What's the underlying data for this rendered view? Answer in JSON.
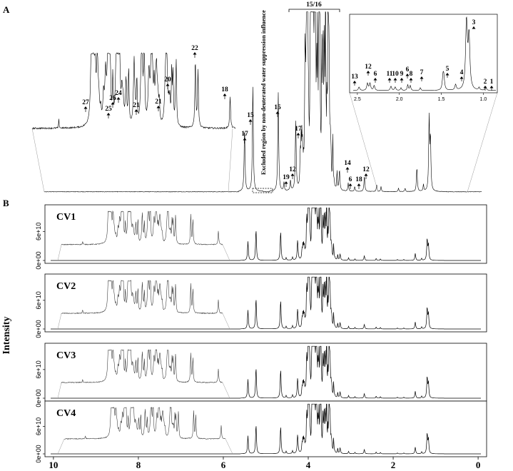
{
  "panels": {
    "a": "A",
    "b": "B"
  },
  "chart_data": [
    {
      "type": "line",
      "panel": "A",
      "description_visible": "1H NMR spectrum with numbered peak assignments",
      "excluded_region_label": "Excluded region by non-deuterated water suppression influence",
      "main_peaks": [
        {
          "label": "17",
          "ppm": 5.42
        },
        {
          "label": "15",
          "ppm": 5.23
        },
        {
          "label": "15",
          "ppm": 4.65
        },
        {
          "label": "19",
          "ppm": 4.52
        },
        {
          "label": "12",
          "ppm": 4.37
        },
        {
          "label": "17",
          "ppm": 4.25
        },
        {
          "label": "15/16",
          "ppm": 3.8
        },
        {
          "label": "14",
          "ppm": 3.25
        },
        {
          "label": "6",
          "ppm": 3.05
        },
        {
          "label": "18",
          "ppm": 2.9
        },
        {
          "label": "12",
          "ppm": 2.68
        }
      ],
      "left_inset_peaks": [
        {
          "label": "27",
          "ppm": 9.1
        },
        {
          "label": "25",
          "ppm": 8.5
        },
        {
          "label": "26",
          "ppm": 8.45
        },
        {
          "label": "24",
          "ppm": 8.35
        },
        {
          "label": "21",
          "ppm": 8.1
        },
        {
          "label": "21",
          "ppm": 7.45
        },
        {
          "label": "20",
          "ppm": 7.2
        },
        {
          "label": "22",
          "ppm": 6.55
        },
        {
          "label": "18",
          "ppm": 5.9
        }
      ],
      "right_inset_peaks": [
        {
          "label": "13",
          "ppm": 2.48
        },
        {
          "label": "12",
          "ppm": 2.38
        },
        {
          "label": "6",
          "ppm": 2.3
        },
        {
          "label": "11",
          "ppm": 2.1
        },
        {
          "label": "10",
          "ppm": 2.05
        },
        {
          "label": "9",
          "ppm": 1.98
        },
        {
          "label": "6",
          "ppm": 1.9
        },
        {
          "label": "8",
          "ppm": 1.87
        },
        {
          "label": "7",
          "ppm": 1.75
        },
        {
          "label": "5",
          "ppm": 1.48
        },
        {
          "label": "4",
          "ppm": 1.33
        },
        {
          "label": "3",
          "ppm": 1.2
        },
        {
          "label": "2",
          "ppm": 1.05
        },
        {
          "label": "1",
          "ppm": 0.97
        }
      ],
      "right_inset_x_ticks": [
        "2.5",
        "2.0",
        "1.5",
        "1.0"
      ]
    },
    {
      "type": "line",
      "panel": "B",
      "ylabel": "Intensity",
      "y_ticks": [
        "0e+00",
        "6e+10"
      ],
      "x_ticks": [
        "10",
        "8",
        "6",
        "4",
        "2",
        "0"
      ],
      "xlim": [
        10.2,
        -0.2
      ],
      "series": [
        {
          "name": "CV1"
        },
        {
          "name": "CV2"
        },
        {
          "name": "CV3"
        },
        {
          "name": "CV4"
        }
      ]
    }
  ]
}
